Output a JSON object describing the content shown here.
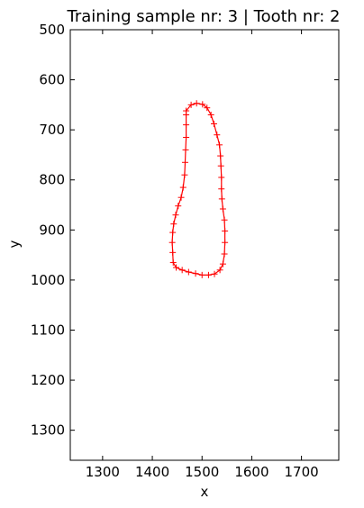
{
  "chart_data": {
    "type": "line",
    "title": "Training sample nr: 3 | Tooth nr: 2",
    "xlabel": "x",
    "ylabel": "y",
    "xlim": [
      1235,
      1775
    ],
    "ylim": [
      1360,
      500
    ],
    "y_inverted": true,
    "xticks": [
      1300,
      1400,
      1500,
      1600,
      1700
    ],
    "yticks": [
      500,
      600,
      700,
      800,
      900,
      1000,
      1100,
      1200,
      1300
    ],
    "grid": false,
    "series": [
      {
        "color": "#ff0000",
        "marker": "+",
        "closed": true,
        "points": [
          [
            1468,
            662
          ],
          [
            1478,
            650
          ],
          [
            1489,
            647
          ],
          [
            1501,
            649
          ],
          [
            1510,
            656
          ],
          [
            1518,
            670
          ],
          [
            1524,
            688
          ],
          [
            1530,
            710
          ],
          [
            1535,
            730
          ],
          [
            1537,
            752
          ],
          [
            1538,
            772
          ],
          [
            1539,
            795
          ],
          [
            1539,
            818
          ],
          [
            1540,
            838
          ],
          [
            1542,
            858
          ],
          [
            1545,
            880
          ],
          [
            1546,
            902
          ],
          [
            1546,
            925
          ],
          [
            1545,
            948
          ],
          [
            1542,
            968
          ],
          [
            1536,
            980
          ],
          [
            1525,
            988
          ],
          [
            1513,
            990
          ],
          [
            1500,
            990
          ],
          [
            1487,
            987
          ],
          [
            1473,
            984
          ],
          [
            1460,
            980
          ],
          [
            1448,
            975
          ],
          [
            1442,
            965
          ],
          [
            1441,
            945
          ],
          [
            1440,
            925
          ],
          [
            1441,
            905
          ],
          [
            1443,
            888
          ],
          [
            1447,
            870
          ],
          [
            1452,
            852
          ],
          [
            1458,
            835
          ],
          [
            1462,
            815
          ],
          [
            1465,
            790
          ],
          [
            1466,
            765
          ],
          [
            1467,
            740
          ],
          [
            1468,
            715
          ],
          [
            1468,
            690
          ],
          [
            1468,
            670
          ]
        ]
      }
    ]
  }
}
